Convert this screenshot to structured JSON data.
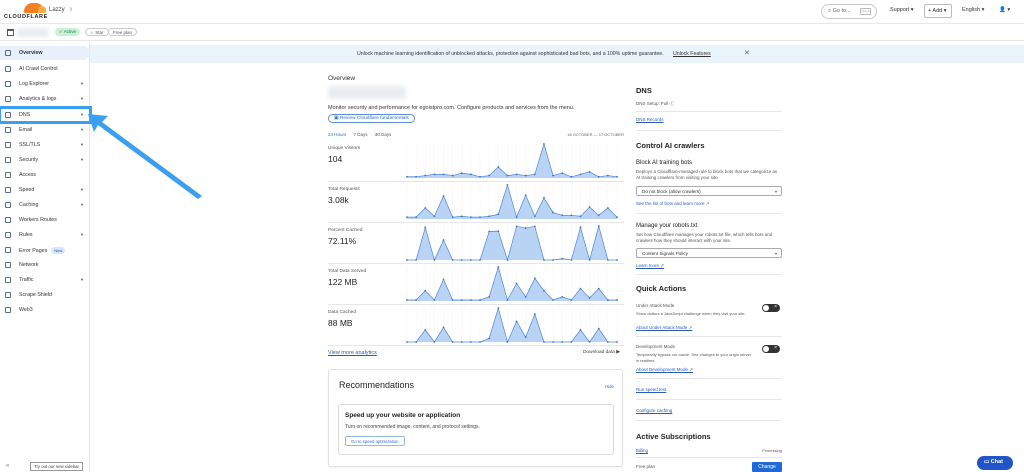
{
  "topbar": {
    "logo_text": "CLOUDFLARE",
    "account_name": "Lazzy",
    "goto_placeholder": "Go to...",
    "goto_kbd": "Ctrl+K",
    "support_label": "Support ▾",
    "add_label": "+ Add ▾",
    "language_label": "English ▾",
    "user_menu": "👤 ▾"
  },
  "subbar": {
    "status_badge": "✓ Active",
    "star_label": "☆ Star",
    "plan_label": "Free plan"
  },
  "sidebar": {
    "items": [
      {
        "label": "Overview",
        "icon": "overview-icon",
        "chevron": false
      },
      {
        "label": "AI Crawl Control",
        "icon": "ai-crawl-icon",
        "chevron": false
      },
      {
        "label": "Log Explorer",
        "icon": "log-icon",
        "chevron": true
      },
      {
        "label": "Analytics & logs",
        "icon": "analytics-icon",
        "chevron": true
      },
      {
        "label": "DNS",
        "icon": "dns-icon",
        "chevron": true
      },
      {
        "label": "Email",
        "icon": "email-icon",
        "chevron": true
      },
      {
        "label": "SSL/TLS",
        "icon": "lock-icon",
        "chevron": true
      },
      {
        "label": "Security",
        "icon": "shield-icon",
        "chevron": true
      },
      {
        "label": "Access",
        "icon": "access-icon",
        "chevron": false
      },
      {
        "label": "Speed",
        "icon": "speed-icon",
        "chevron": true
      },
      {
        "label": "Caching",
        "icon": "caching-icon",
        "chevron": true
      },
      {
        "label": "Workers Routes",
        "icon": "workers-icon",
        "chevron": false
      },
      {
        "label": "Rules",
        "icon": "rules-icon",
        "chevron": true
      },
      {
        "label": "Error Pages",
        "icon": "error-pages-icon",
        "chevron": false,
        "badge": "New"
      },
      {
        "label": "Network",
        "icon": "network-icon",
        "chevron": false
      },
      {
        "label": "Traffic",
        "icon": "traffic-icon",
        "chevron": true
      },
      {
        "label": "Scrape Shield",
        "icon": "scrape-shield-icon",
        "chevron": false
      },
      {
        "label": "Web3",
        "icon": "web3-icon",
        "chevron": false
      }
    ],
    "collapse_icon": "«",
    "try_new_sidebar": "Try out our new sidebar"
  },
  "banner": {
    "text": "Unlock machine learning identification of unblocked attacks, protection against sophisticated bad bots, and a 100% uptime guarantee.",
    "link": "Unlock Features",
    "close": "✕"
  },
  "overview": {
    "title": "Overview",
    "description": "Monitor security and performance for egoistpro.com. Configure products and services from the menu.",
    "review_button": "Review Cloudflare fundamentals",
    "ranges": [
      "24 Hours",
      "7 Days",
      "30 Days"
    ],
    "active_range": "24 Hours",
    "date_range": "16 OCTOBER — 17 OCTOBER",
    "metrics": [
      {
        "label": "Unique Visitors",
        "value": "104"
      },
      {
        "label": "Total Requests",
        "value": "3.08k"
      },
      {
        "label": "Percent Cached",
        "value": "72.11%"
      },
      {
        "label": "Total Data Served",
        "value": "122 MB"
      },
      {
        "label": "Data Cached",
        "value": "88 MB"
      }
    ],
    "view_more": "View more analytics",
    "download": "Download data ▶"
  },
  "chart_data": [
    {
      "type": "area",
      "title": "Unique Visitors",
      "x": [
        1,
        2,
        3,
        4,
        5,
        6,
        7,
        8,
        9,
        10,
        11,
        12,
        13,
        14,
        15,
        16,
        17,
        18,
        19,
        20,
        21,
        22,
        23,
        24
      ],
      "values": [
        1,
        1,
        2,
        3,
        3,
        2,
        4,
        3,
        1,
        2,
        9,
        2,
        3,
        2,
        3,
        28,
        2,
        4,
        1,
        3,
        5,
        1,
        2,
        1
      ]
    },
    {
      "type": "area",
      "title": "Total Requests",
      "x": [
        1,
        2,
        3,
        4,
        5,
        6,
        7,
        8,
        9,
        10,
        11,
        12,
        13,
        14,
        15,
        16,
        17,
        18,
        19,
        20,
        21,
        22,
        23,
        24
      ],
      "values": [
        2,
        2,
        12,
        3,
        25,
        2,
        3,
        2,
        2,
        3,
        5,
        37,
        2,
        26,
        3,
        23,
        7,
        4,
        4,
        3,
        13,
        4,
        12,
        2
      ]
    },
    {
      "type": "area",
      "title": "Percent Cached",
      "x": [
        1,
        2,
        3,
        4,
        5,
        6,
        7,
        8,
        9,
        10,
        11,
        12,
        13,
        14,
        15,
        16,
        17,
        18,
        19,
        20,
        21,
        22,
        23,
        24
      ],
      "values": [
        0,
        0,
        95,
        0,
        58,
        0,
        0,
        0,
        0,
        83,
        84,
        0,
        98,
        93,
        98,
        0,
        0,
        4,
        0,
        95,
        0,
        99,
        0,
        0
      ]
    },
    {
      "type": "area",
      "title": "Total Data Served",
      "x": [
        1,
        2,
        3,
        4,
        5,
        6,
        7,
        8,
        9,
        10,
        11,
        12,
        13,
        14,
        15,
        16,
        17,
        18,
        19,
        20,
        21,
        22,
        23,
        24
      ],
      "values": [
        1,
        1,
        10,
        1,
        21,
        1,
        1,
        1,
        1,
        4,
        33,
        1,
        17,
        4,
        22,
        10,
        1,
        4,
        1,
        12,
        3,
        12,
        1,
        1
      ]
    },
    {
      "type": "area",
      "title": "Data Cached",
      "x": [
        1,
        2,
        3,
        4,
        5,
        6,
        7,
        8,
        9,
        10,
        11,
        12,
        13,
        14,
        15,
        16,
        17,
        18,
        19,
        20,
        21,
        22,
        23,
        24
      ],
      "values": [
        0,
        0,
        10,
        0,
        12,
        0,
        0,
        0,
        0,
        3,
        28,
        0,
        17,
        4,
        23,
        0,
        0,
        0,
        0,
        10,
        0,
        11,
        0,
        0
      ]
    }
  ],
  "recommendations": {
    "title": "Recommendations",
    "hide": "Hide",
    "card_title": "Speed up your website or application",
    "card_text": "Turn on recommended image, content, and protocol settings.",
    "card_button": "Go to speed optimization"
  },
  "right": {
    "dns_title": "DNS",
    "dns_setup": "DNS Setup:  Full ⓘ",
    "dns_records": "DNS Records",
    "ai_title": "Control AI crawlers",
    "block_title": "Block AI training bots",
    "block_text": "Deploys a Cloudflare-managed rule to block bots that we categorize as AI training crawlers from visiting your site.",
    "block_select": "Do not block (allow crawlers)",
    "block_link": "See the list of bots and learn more ↗",
    "robots_title": "Manage your robots.txt",
    "robots_text": "Set how Cloudflare manages your robots.txt file, which tells bots and crawlers how they should interact with your site.",
    "robots_select": "Content Signals Policy",
    "robots_link": "Learn more ↗",
    "quick_title": "Quick Actions",
    "uam_title": "Under Attack Mode",
    "uam_text": "Show visitors a JavaScript challenge when they visit your site.",
    "uam_link": "About Under Attack Mode ↗",
    "dev_title": "Development Mode",
    "dev_text": "Temporarily bypass our cache. See changes to your origin server in realtime.",
    "dev_link": "About Development Mode ↗",
    "speed_test": "Run speed test",
    "configure_caching": "Configure caching",
    "subs_title": "Active Subscriptions",
    "billing": "Billing",
    "billing_status": "Processing",
    "free_plan": "Free plan",
    "change": "Change"
  },
  "chat": {
    "label": "Chat"
  },
  "colors": {
    "accent": "#1f6ad8",
    "chart_fill": "#b9d3f5",
    "chart_line": "#4d86d6",
    "highlight": "#3a9ff0"
  }
}
